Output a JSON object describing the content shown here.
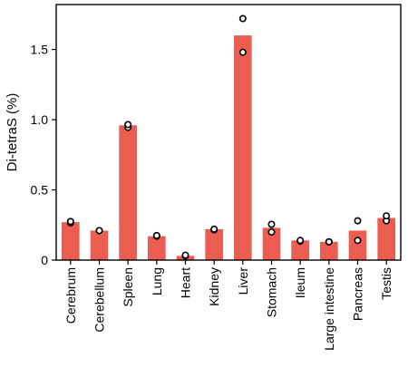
{
  "chart_data": {
    "type": "bar",
    "title": "",
    "xlabel": "",
    "ylabel": "Di-tetraS (%)",
    "ylim": [
      0,
      1.82
    ],
    "yticks": [
      0,
      0.5,
      1.0,
      1.5
    ],
    "ytick_labels": [
      "0",
      "0.5",
      "1.0",
      "1.5"
    ],
    "bar_color": "#ea5d50",
    "point_fill": "#ffffff",
    "point_stroke": "#000000",
    "grid": false,
    "legend": "none",
    "categories": [
      "Cerebrum",
      "Cerebellum",
      "Spleen",
      "Lung",
      "Heart",
      "Kidney",
      "Liver",
      "Stomach",
      "Ileum",
      "Large intestine",
      "Pancreas",
      "Testis"
    ],
    "values": [
      0.27,
      0.21,
      0.96,
      0.17,
      0.03,
      0.22,
      1.6,
      0.23,
      0.14,
      0.13,
      0.21,
      0.3
    ],
    "points": [
      [
        0.265,
        0.275
      ],
      [
        0.21,
        0.21
      ],
      [
        0.945,
        0.965
      ],
      [
        0.17,
        0.175
      ],
      [
        0.03,
        0.035
      ],
      [
        0.215,
        0.22
      ],
      [
        1.48,
        1.72
      ],
      [
        0.2,
        0.255
      ],
      [
        0.135,
        0.14
      ],
      [
        0.13,
        0.13
      ],
      [
        0.14,
        0.28
      ],
      [
        0.28,
        0.315
      ]
    ]
  }
}
